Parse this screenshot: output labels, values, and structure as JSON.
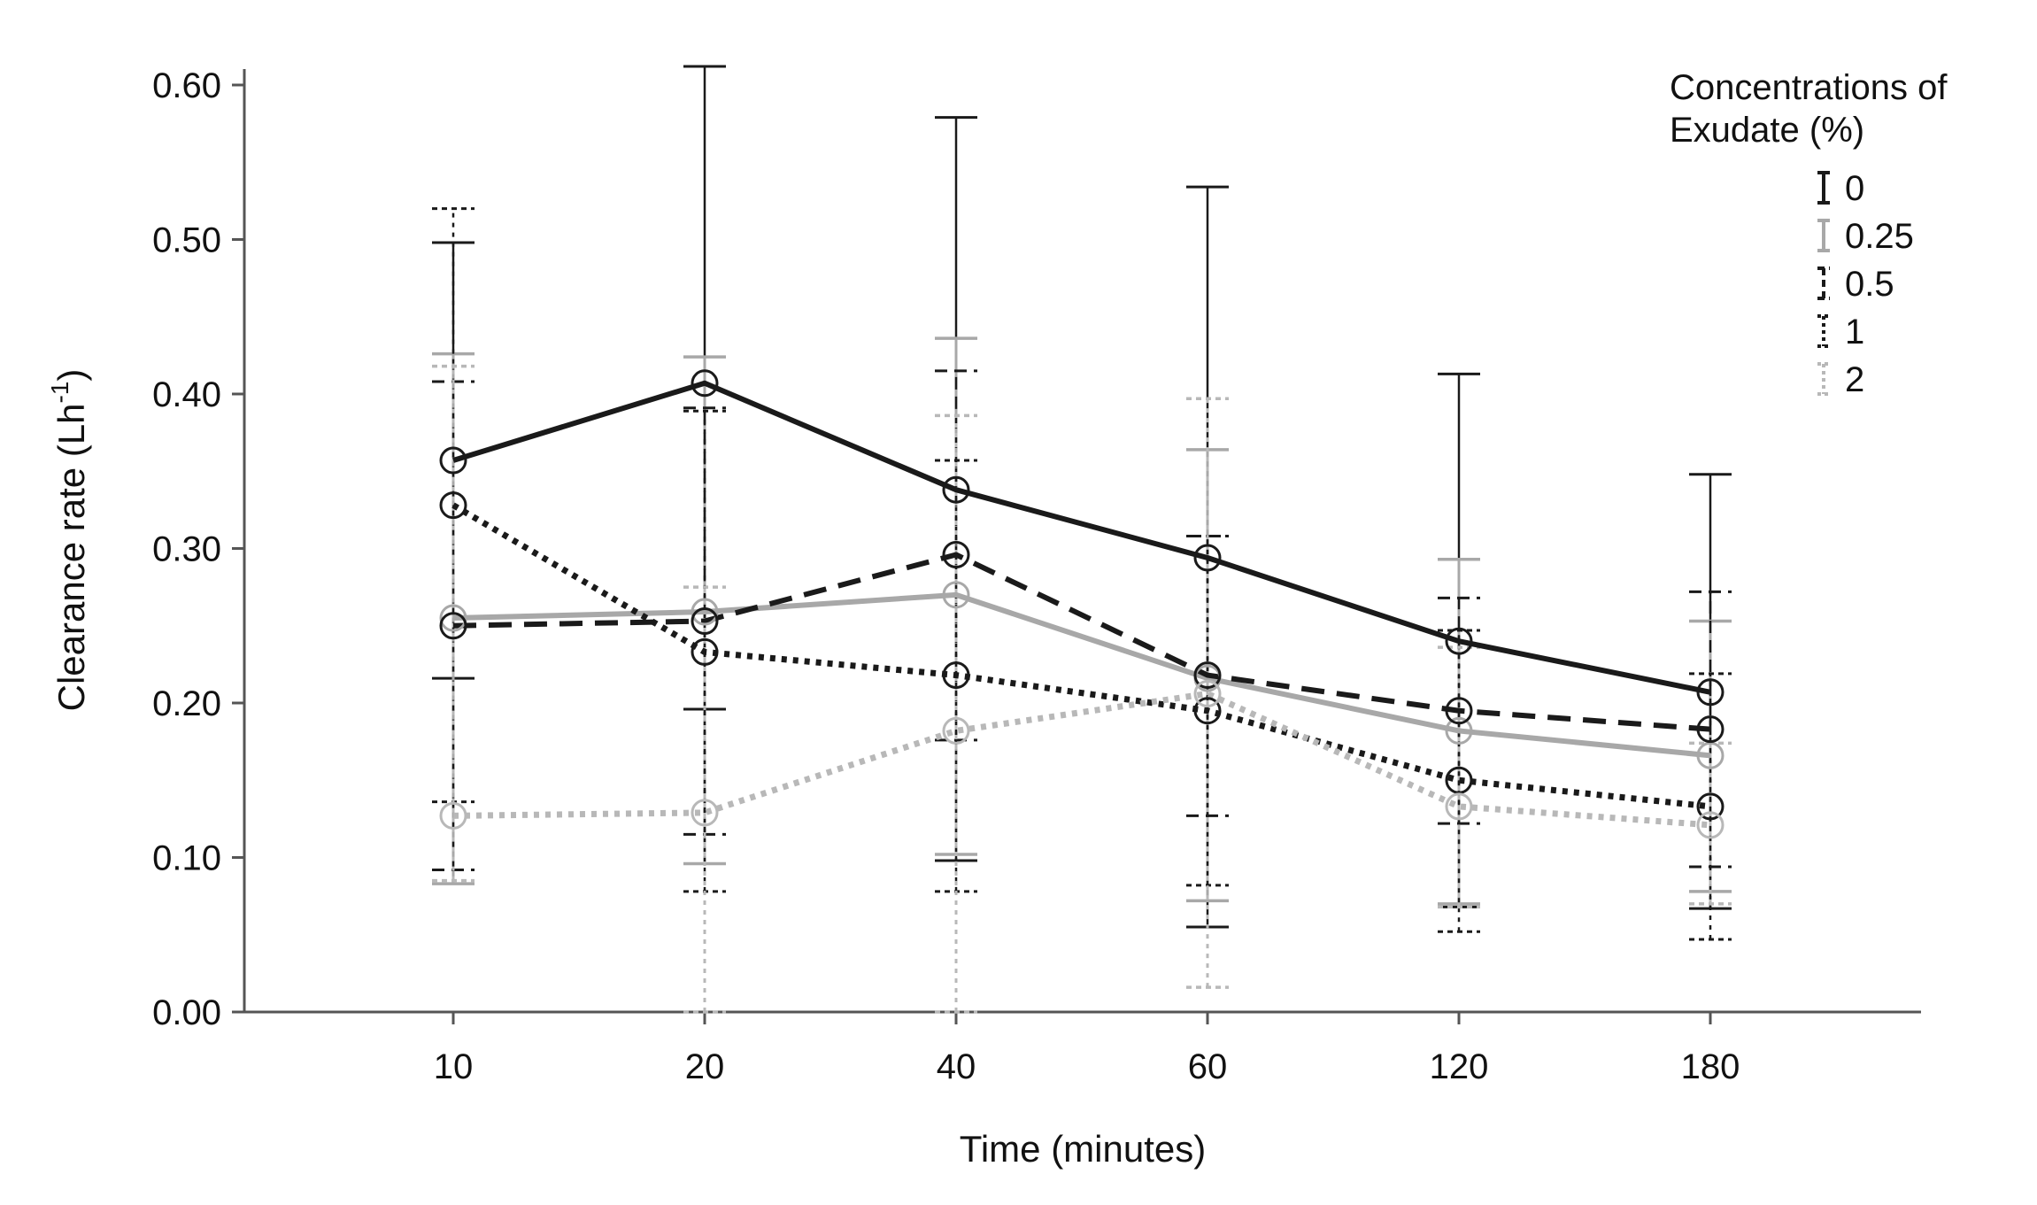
{
  "chart_data": {
    "type": "line",
    "title": "",
    "xlabel": "Time (minutes)",
    "ylabel": "Clearance rate (Lh",
    "ylabel_superscript": "-1",
    "ylabel_close": ")",
    "categories": [
      "10",
      "20",
      "40",
      "60",
      "120",
      "180"
    ],
    "ylim": [
      0,
      0.6
    ],
    "yticks": [
      "0.00",
      "0.10",
      "0.20",
      "0.30",
      "0.40",
      "0.50",
      "0.60"
    ],
    "grid": false,
    "legend_title_line1": "Concentrations of",
    "legend_title_line2": "Exudate (%)",
    "series": [
      {
        "name": "0",
        "color": "#1a1a1a",
        "dash": "solid",
        "values": [
          0.357,
          0.407,
          0.338,
          0.294,
          0.24,
          0.207
        ],
        "err_low": [
          0.216,
          0.196,
          0.098,
          0.055,
          0.068,
          0.067
        ],
        "err_high": [
          0.498,
          0.612,
          0.579,
          0.534,
          0.413,
          0.348
        ]
      },
      {
        "name": "0.25",
        "color": "#a8a8a8",
        "dash": "solid",
        "values": [
          0.255,
          0.259,
          0.27,
          0.216,
          0.182,
          0.166
        ],
        "err_low": [
          0.083,
          0.096,
          0.102,
          0.072,
          0.07,
          0.078
        ],
        "err_high": [
          0.426,
          0.424,
          0.436,
          0.364,
          0.293,
          0.253
        ]
      },
      {
        "name": "0.5",
        "color": "#1a1a1a",
        "dash": "dashed",
        "values": [
          0.25,
          0.253,
          0.296,
          0.218,
          0.195,
          0.183
        ],
        "err_low": [
          0.092,
          0.115,
          0.176,
          0.127,
          0.122,
          0.094
        ],
        "err_high": [
          0.408,
          0.391,
          0.415,
          0.308,
          0.268,
          0.272
        ]
      },
      {
        "name": "1",
        "color": "#1a1a1a",
        "dash": "dotted",
        "values": [
          0.328,
          0.233,
          0.218,
          0.195,
          0.15,
          0.133
        ],
        "err_low": [
          0.136,
          0.078,
          0.078,
          0.082,
          0.052,
          0.047
        ],
        "err_high": [
          0.52,
          0.389,
          0.357,
          0.308,
          0.247,
          0.219
        ]
      },
      {
        "name": "2",
        "color": "#b8b8b8",
        "dash": "dotted",
        "values": [
          0.127,
          0.129,
          0.182,
          0.206,
          0.133,
          0.121
        ],
        "err_low": [
          0.085,
          0.0,
          0.0,
          0.016,
          0.068,
          0.07
        ],
        "err_high": [
          0.418,
          0.275,
          0.386,
          0.397,
          0.236,
          0.174
        ]
      }
    ]
  }
}
